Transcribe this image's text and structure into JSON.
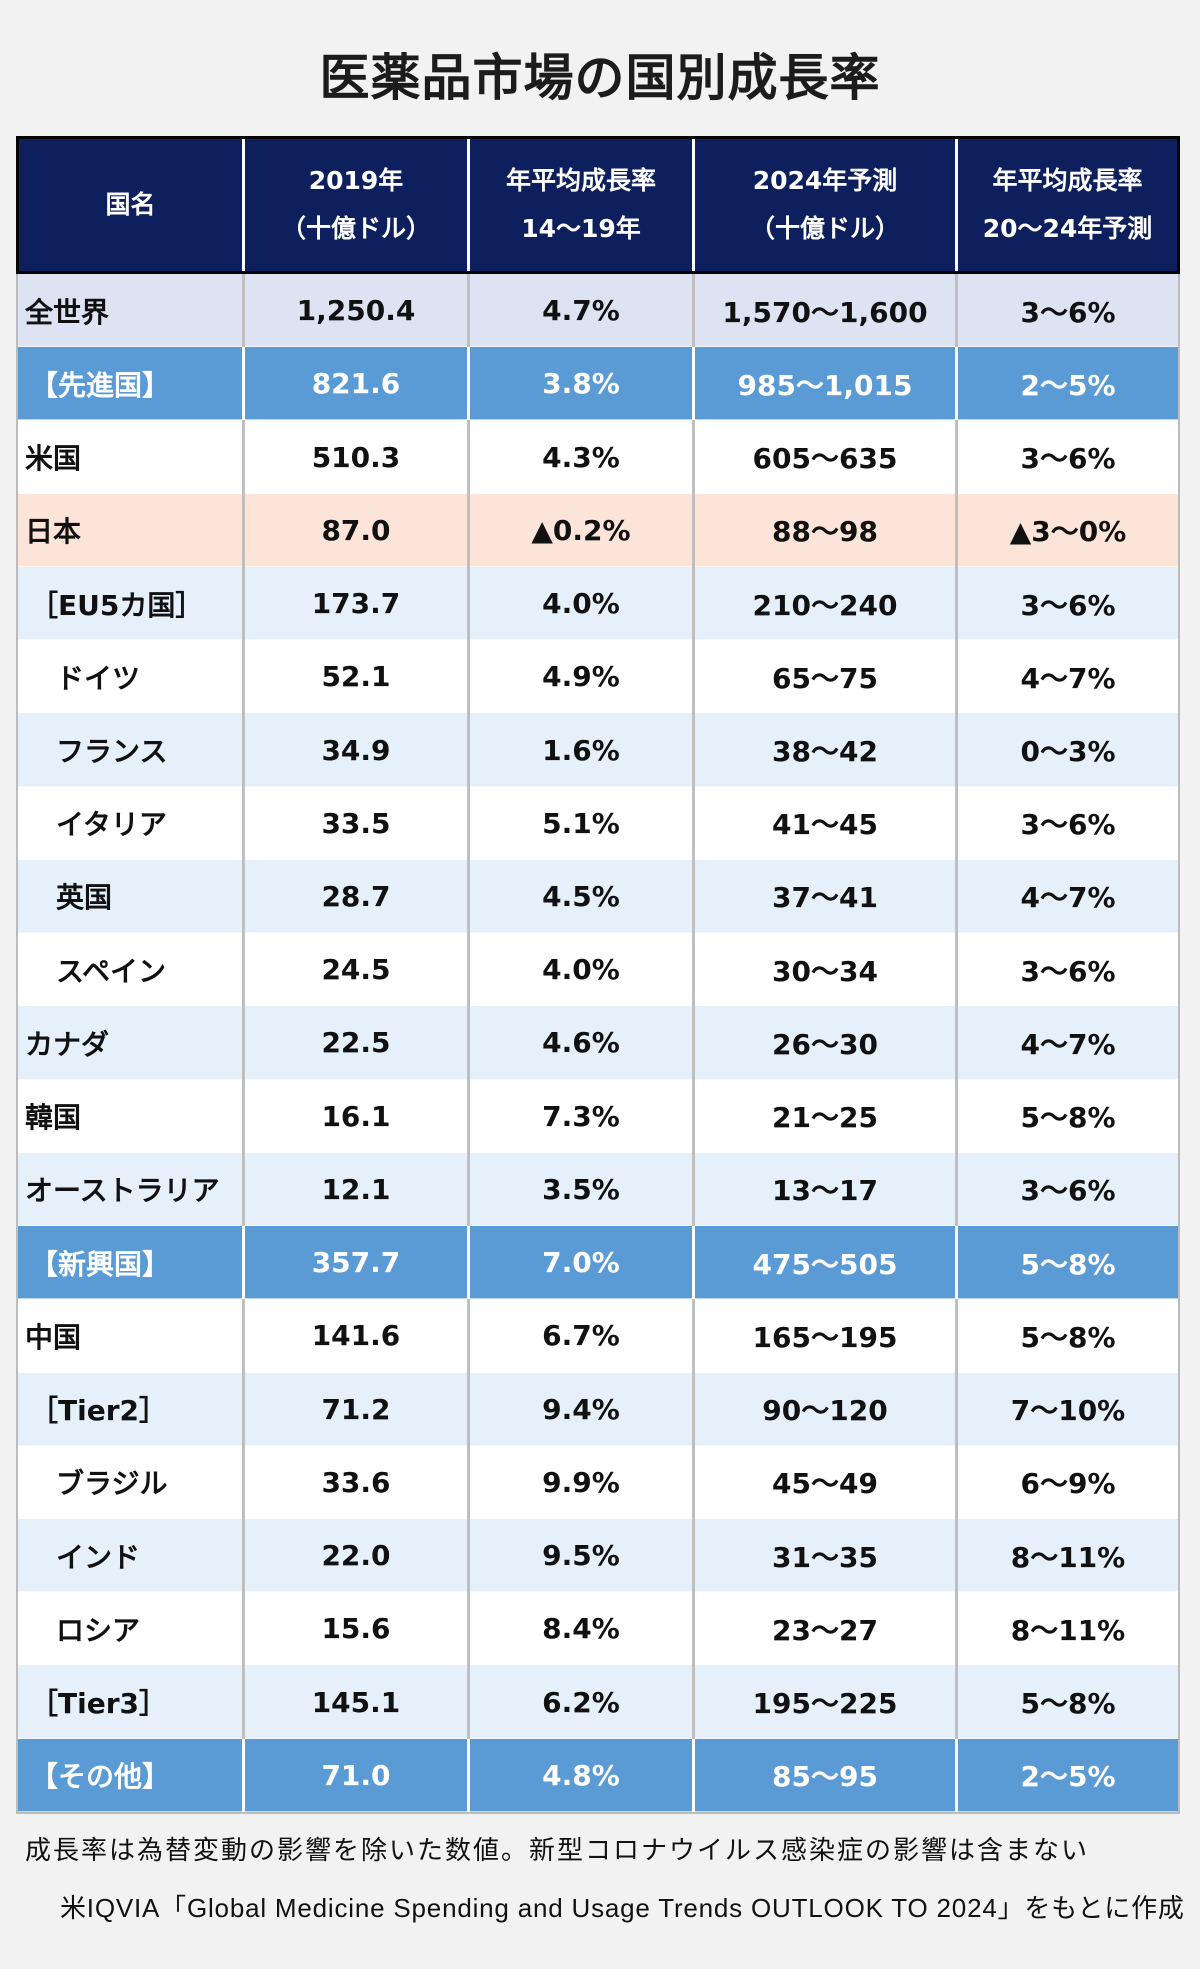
{
  "colors": {
    "page-bg": "#f2f2f2",
    "header-bg": "#0e1f5e",
    "group-bg": "#5b9bd5",
    "world-bg": "#dde3f3",
    "plain-bg": "#ffffff",
    "alt-bg": "#e6f0fa",
    "highlight-bg": "#fde4d8"
  },
  "chart_data": {
    "type": "table",
    "title": "医薬品市場の国別成長率",
    "columns": [
      {
        "line1": "国名",
        "line2": ""
      },
      {
        "line1": "2019年",
        "line2": "（十億ドル）"
      },
      {
        "line1": "年平均成長率",
        "line2": "14～19年"
      },
      {
        "line1": "2024年予測",
        "line2": "（十億ドル）"
      },
      {
        "line1": "年平均成長率",
        "line2": "20～24年予測"
      }
    ],
    "rows": [
      {
        "name": "全世界",
        "level": 0,
        "type": "world",
        "values": [
          "1,250.4",
          "4.7%",
          "1,570～1,600",
          "3～6%"
        ]
      },
      {
        "name": "【先進国】",
        "level": 1,
        "type": "group",
        "values": [
          "821.6",
          "3.8%",
          "985～1,015",
          "2～5%"
        ]
      },
      {
        "name": "米国",
        "level": 0,
        "type": "plain",
        "values": [
          "510.3",
          "4.3%",
          "605～635",
          "3～6%"
        ]
      },
      {
        "name": "日本",
        "level": 0,
        "type": "highlight",
        "values": [
          "87.0",
          "▲0.2%",
          "88～98",
          "▲3～0%"
        ]
      },
      {
        "name": "［EU5カ国］",
        "level": 1,
        "type": "alt",
        "values": [
          "173.7",
          "4.0%",
          "210～240",
          "3～6%"
        ]
      },
      {
        "name": "ドイツ",
        "level": 2,
        "type": "plain",
        "values": [
          "52.1",
          "4.9%",
          "65～75",
          "4～7%"
        ]
      },
      {
        "name": "フランス",
        "level": 2,
        "type": "alt",
        "values": [
          "34.9",
          "1.6%",
          "38～42",
          "0～3%"
        ]
      },
      {
        "name": "イタリア",
        "level": 2,
        "type": "plain",
        "values": [
          "33.5",
          "5.1%",
          "41～45",
          "3～6%"
        ]
      },
      {
        "name": "英国",
        "level": 2,
        "type": "alt",
        "values": [
          "28.7",
          "4.5%",
          "37～41",
          "4～7%"
        ]
      },
      {
        "name": "スペイン",
        "level": 2,
        "type": "plain",
        "values": [
          "24.5",
          "4.0%",
          "30～34",
          "3～6%"
        ]
      },
      {
        "name": "カナダ",
        "level": 0,
        "type": "alt",
        "values": [
          "22.5",
          "4.6%",
          "26～30",
          "4～7%"
        ]
      },
      {
        "name": "韓国",
        "level": 0,
        "type": "plain",
        "values": [
          "16.1",
          "7.3%",
          "21～25",
          "5～8%"
        ]
      },
      {
        "name": "オーストラリア",
        "level": 0,
        "type": "alt",
        "values": [
          "12.1",
          "3.5%",
          "13～17",
          "3～6%"
        ]
      },
      {
        "name": "【新興国】",
        "level": 1,
        "type": "group",
        "values": [
          "357.7",
          "7.0%",
          "475～505",
          "5～8%"
        ]
      },
      {
        "name": "中国",
        "level": 0,
        "type": "plain",
        "values": [
          "141.6",
          "6.7%",
          "165～195",
          "5～8%"
        ]
      },
      {
        "name": "［Tier2］",
        "level": 1,
        "type": "alt",
        "values": [
          "71.2",
          "9.4%",
          "90～120",
          "7～10%"
        ]
      },
      {
        "name": "ブラジル",
        "level": 2,
        "type": "plain",
        "values": [
          "33.6",
          "9.9%",
          "45～49",
          "6～9%"
        ]
      },
      {
        "name": "インド",
        "level": 2,
        "type": "alt",
        "values": [
          "22.0",
          "9.5%",
          "31～35",
          "8～11%"
        ]
      },
      {
        "name": "ロシア",
        "level": 2,
        "type": "plain",
        "values": [
          "15.6",
          "8.4%",
          "23～27",
          "8～11%"
        ]
      },
      {
        "name": "［Tier3］",
        "level": 1,
        "type": "alt",
        "values": [
          "145.1",
          "6.2%",
          "195～225",
          "5～8%"
        ]
      },
      {
        "name": "【その他】",
        "level": 1,
        "type": "group",
        "values": [
          "71.0",
          "4.8%",
          "85～95",
          "2～5%"
        ]
      }
    ],
    "annotations": {
      "note": "成長率は為替変動の影響を除いた数値。新型コロナウイルス感染症の影響は含まない",
      "source": "米IQVIA「Global Medicine Spending and Usage Trends OUTLOOK TO 2024」をもとに作成"
    }
  }
}
